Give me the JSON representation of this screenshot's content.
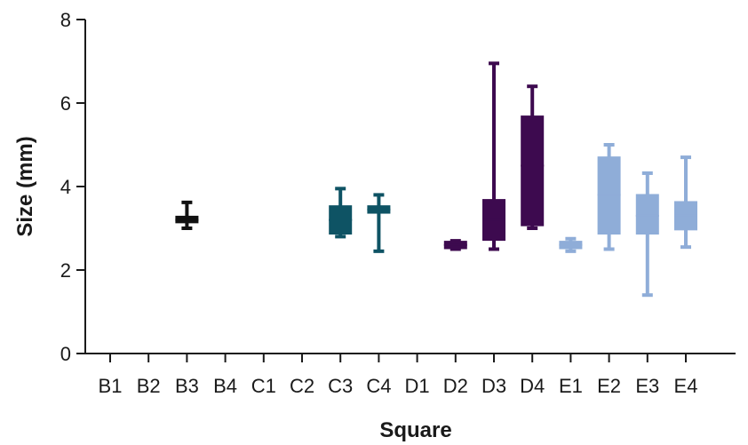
{
  "chart_data": {
    "type": "box",
    "xlabel": "Square",
    "ylabel": "Size (mm)",
    "ylim": [
      0,
      8
    ],
    "yticks": [
      0,
      2,
      4,
      6,
      8
    ],
    "categories": [
      "B1",
      "B2",
      "B3",
      "B4",
      "C1",
      "C2",
      "C3",
      "C4",
      "D1",
      "D2",
      "D3",
      "D4",
      "E1",
      "E2",
      "E3",
      "E4"
    ],
    "boxes": [
      {
        "category": "B3",
        "color": "#111111",
        "min": 3.0,
        "q1": 3.12,
        "median": 3.2,
        "q3": 3.3,
        "max": 3.62
      },
      {
        "category": "C3",
        "color": "#0e5364",
        "min": 2.8,
        "q1": 2.85,
        "median": 3.2,
        "q3": 3.55,
        "max": 3.95
      },
      {
        "category": "C4",
        "color": "#0e5364",
        "min": 2.45,
        "q1": 3.35,
        "median": 3.45,
        "q3": 3.55,
        "max": 3.8
      },
      {
        "category": "D2",
        "color": "#3d0a4f",
        "min": 2.5,
        "q1": 2.5,
        "median": 2.6,
        "q3": 2.7,
        "max": 2.7
      },
      {
        "category": "D3",
        "color": "#3d0a4f",
        "min": 2.5,
        "q1": 2.7,
        "median": 3.2,
        "q3": 3.7,
        "max": 6.95
      },
      {
        "category": "D4",
        "color": "#3d0a4f",
        "min": 3.0,
        "q1": 3.05,
        "median": 4.5,
        "q3": 5.7,
        "max": 6.4
      },
      {
        "category": "E1",
        "color": "#8fadd8",
        "min": 2.45,
        "q1": 2.5,
        "median": 2.6,
        "q3": 2.7,
        "max": 2.75
      },
      {
        "category": "E2",
        "color": "#8fadd8",
        "min": 2.5,
        "q1": 2.85,
        "median": 3.8,
        "q3": 4.72,
        "max": 5.0
      },
      {
        "category": "E3",
        "color": "#8fadd8",
        "min": 1.4,
        "q1": 2.85,
        "median": 3.3,
        "q3": 3.82,
        "max": 4.32
      },
      {
        "category": "E4",
        "color": "#8fadd8",
        "min": 2.55,
        "q1": 2.95,
        "median": 3.3,
        "q3": 3.65,
        "max": 4.7
      }
    ]
  }
}
